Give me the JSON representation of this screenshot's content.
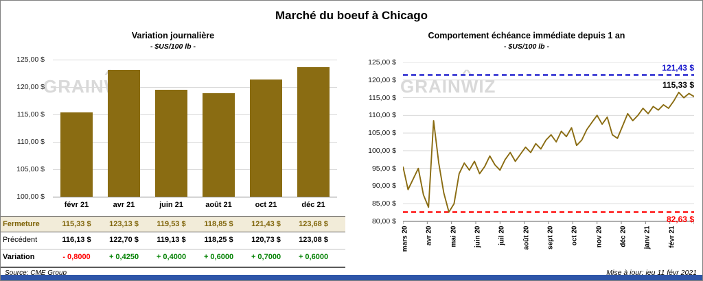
{
  "header": {
    "title": "Marché du boeuf à Chicago"
  },
  "watermark": {
    "part1": "GRAIN",
    "part2": "W",
    "part3": "IZ",
    "peak": "^"
  },
  "footer": {
    "source": "Source: CME Group",
    "updated": "Mise à jour: jeu 11 févr 2021"
  },
  "colors": {
    "gold": "#8a6c12",
    "beige": "#f2ecd9",
    "blue_ref": "#1414cc",
    "red_ref": "#ff0000",
    "negative": "#ff0000",
    "positive": "#008000",
    "footer_bar": "#2e55a8",
    "grid": "#d9d9d9",
    "axis": "#7f7f7f",
    "watermark": "#d9d9d9"
  },
  "chart_data": [
    {
      "type": "bar",
      "title": "Variation  journalière",
      "subtitle": "- $US/100 lb -",
      "categories": [
        "févr 21",
        "avr 21",
        "juin 21",
        "août 21",
        "oct 21",
        "déc 21"
      ],
      "values": [
        115.33,
        123.13,
        119.53,
        118.85,
        121.43,
        123.68
      ],
      "ylim": [
        100,
        125
      ],
      "ytick_step": 5,
      "grid": true,
      "bar_color": "#8a6c12",
      "table": {
        "rows": [
          {
            "label": "Fermeture",
            "style": "close",
            "values": [
              "115,33  $",
              "123,13  $",
              "119,53  $",
              "118,85  $",
              "121,43  $",
              "123,68  $"
            ]
          },
          {
            "label": "Précédent",
            "style": "previous",
            "values": [
              "116,13  $",
              "122,70  $",
              "119,13  $",
              "118,25  $",
              "120,73  $",
              "123,08  $"
            ]
          },
          {
            "label": "Variation",
            "style": "variation",
            "values": [
              "-  0,8000",
              "+  0,4250",
              "+  0,4000",
              "+  0,6000",
              "+  0,7000",
              "+  0,6000"
            ],
            "value_styles": [
              "neg",
              "pos",
              "pos",
              "pos",
              "pos",
              "pos"
            ]
          }
        ]
      }
    },
    {
      "type": "line",
      "title": "Comportement  échéance immédiate depuis 1 an",
      "subtitle": "- $US/100 lb -",
      "x_labels": [
        "mars 20",
        "avr 20",
        "mai 20",
        "juin 20",
        "juil 20",
        "août 20",
        "sept 20",
        "oct 20",
        "nov 20",
        "déc 20",
        "janv 21",
        "févr 21"
      ],
      "ylim": [
        80,
        125
      ],
      "ytick_step": 5,
      "grid": true,
      "series": [
        {
          "name": "échéance immédiate",
          "color": "#8a6c12",
          "values": [
            95.5,
            89,
            92,
            95,
            87.5,
            84,
            108.5,
            96.5,
            88,
            82.63,
            85,
            93.5,
            96.5,
            94.5,
            97,
            93.5,
            95.5,
            98.5,
            96,
            94.5,
            97.5,
            99.5,
            97,
            99,
            101,
            99.5,
            102,
            100.5,
            103,
            104.5,
            102.5,
            105.5,
            104,
            106.5,
            101.5,
            103,
            106,
            108,
            110,
            107.5,
            109.5,
            104.5,
            103.5,
            107,
            110.5,
            108.5,
            110,
            112,
            110.5,
            112.5,
            111.5,
            113,
            112,
            114,
            116.5,
            115,
            116.2,
            115.33
          ]
        }
      ],
      "reference_lines": [
        {
          "label": "121,43  $",
          "value": 121.43,
          "color": "#1414cc",
          "style": "dashed"
        },
        {
          "label": "82,63  $",
          "value": 82.63,
          "color": "#ff0000",
          "style": "dashed"
        }
      ],
      "last_value_label": {
        "label": "115,33  $",
        "value": 115.33,
        "color": "#000000"
      }
    }
  ]
}
